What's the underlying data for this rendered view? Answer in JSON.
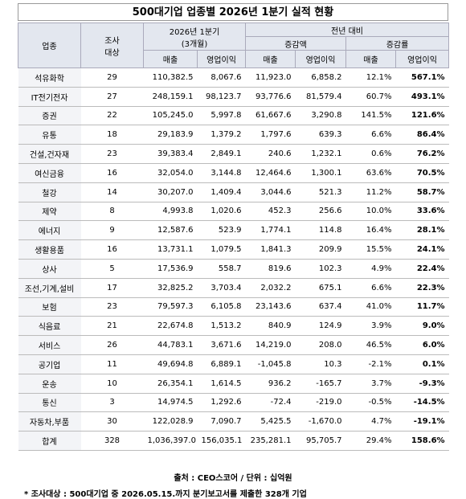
{
  "header": {
    "title": "500대기업 업종별 2026년 1분기 실적 현황"
  },
  "table": {
    "columns": {
      "industry": "업종",
      "count": "조사\n대상",
      "period": "2026년 1분기",
      "period_sub": "(3개월)",
      "yoy": "전년 대비",
      "diff": "증감액",
      "rate": "증감률",
      "sales": [
        "매출",
        "매출",
        "매출"
      ],
      "op": [
        "영업이익",
        "영업이익",
        "영업이익"
      ]
    },
    "rows": [
      [
        "석유화학",
        "29",
        "110,382.5",
        "8,067.6",
        "11,923.0",
        "6,858.2",
        "12.1%",
        "567.1%"
      ],
      [
        "IT전기전자",
        "27",
        "248,159.1",
        "98,123.7",
        "93,776.6",
        "81,579.4",
        "60.7%",
        "493.1%"
      ],
      [
        "증권",
        "22",
        "105,245.0",
        "5,997.8",
        "61,667.6",
        "3,290.8",
        "141.5%",
        "121.6%"
      ],
      [
        "유통",
        "18",
        "29,183.9",
        "1,379.2",
        "1,797.6",
        "639.3",
        "6.6%",
        "86.4%"
      ],
      [
        "건설,건자재",
        "23",
        "39,383.4",
        "2,849.1",
        "240.6",
        "1,232.1",
        "0.6%",
        "76.2%"
      ],
      [
        "여신금융",
        "16",
        "32,054.0",
        "3,144.8",
        "12,464.6",
        "1,300.1",
        "63.6%",
        "70.5%"
      ],
      [
        "철강",
        "14",
        "30,207.0",
        "1,409.4",
        "3,044.6",
        "521.3",
        "11.2%",
        "58.7%"
      ],
      [
        "제약",
        "8",
        "4,993.8",
        "1,020.6",
        "452.3",
        "256.6",
        "10.0%",
        "33.6%"
      ],
      [
        "에너지",
        "9",
        "12,587.6",
        "523.9",
        "1,774.1",
        "114.8",
        "16.4%",
        "28.1%"
      ],
      [
        "생활용품",
        "16",
        "13,731.1",
        "1,079.5",
        "1,841.3",
        "209.9",
        "15.5%",
        "24.1%"
      ],
      [
        "상사",
        "5",
        "17,536.9",
        "558.7",
        "819.6",
        "102.3",
        "4.9%",
        "22.4%"
      ],
      [
        "조선,기계,설비",
        "17",
        "32,825.2",
        "3,703.4",
        "2,032.2",
        "675.1",
        "6.6%",
        "22.3%"
      ],
      [
        "보험",
        "23",
        "79,597.3",
        "6,105.8",
        "23,143.6",
        "637.4",
        "41.0%",
        "11.7%"
      ],
      [
        "식음료",
        "21",
        "22,674.8",
        "1,513.2",
        "840.9",
        "124.9",
        "3.9%",
        "9.0%"
      ],
      [
        "서비스",
        "26",
        "44,783.1",
        "3,671.6",
        "14,219.0",
        "208.0",
        "46.5%",
        "6.0%"
      ],
      [
        "공기업",
        "11",
        "49,694.8",
        "6,889.1",
        "-1,045.8",
        "10.3",
        "-2.1%",
        "0.1%"
      ],
      [
        "운송",
        "10",
        "26,354.1",
        "1,614.5",
        "936.2",
        "-165.7",
        "3.7%",
        "-9.3%"
      ],
      [
        "통신",
        "3",
        "14,974.5",
        "1,292.6",
        "-72.4",
        "-219.0",
        "-0.5%",
        "-14.5%"
      ],
      [
        "자동차,부품",
        "30",
        "122,028.9",
        "7,090.7",
        "5,425.5",
        "-1,670.0",
        "4.7%",
        "-19.1%"
      ],
      [
        "합계",
        "328",
        "1,036,397.0",
        "156,035.1",
        "235,281.1",
        "95,705.7",
        "29.4%",
        "158.6%"
      ]
    ]
  },
  "footer": {
    "source": "출처 : CEO스코어 / 단위 : 십억원",
    "note": "* 조사대상 : 500대기업 중 2026.05.15.까지 분기보고서를 제출한 328개 기업"
  }
}
